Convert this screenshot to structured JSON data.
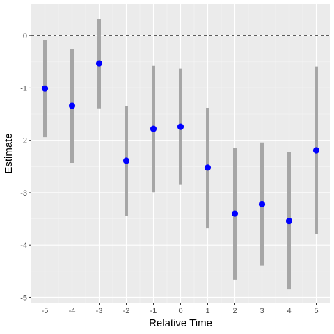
{
  "chart_data": {
    "type": "scatter",
    "title": "",
    "xlabel": "Relative Time",
    "ylabel": "Estimate",
    "x": [
      -5,
      -4,
      -3,
      -2,
      -1,
      0,
      1,
      2,
      3,
      4,
      5
    ],
    "estimate": [
      -1.01,
      -1.34,
      -0.53,
      -2.39,
      -1.78,
      -1.74,
      -2.52,
      -3.4,
      -3.22,
      -3.54,
      -2.19
    ],
    "ci_low": [
      -1.94,
      -2.43,
      -1.39,
      -3.45,
      -2.99,
      -2.85,
      -3.68,
      -4.66,
      -4.39,
      -4.85,
      -3.79
    ],
    "ci_high": [
      -0.08,
      -0.26,
      0.32,
      -1.34,
      -0.58,
      -0.63,
      -1.38,
      -2.15,
      -2.04,
      -2.22,
      -0.59
    ],
    "x_ticks": [
      "-5",
      "-4",
      "-3",
      "-2",
      "-1",
      "0",
      "1",
      "2",
      "3",
      "4",
      "5"
    ],
    "y_ticks": [
      "0",
      "-1",
      "-2",
      "-3",
      "-4",
      "-5"
    ],
    "y_tick_values": [
      0,
      -1,
      -2,
      -3,
      -4,
      -5
    ],
    "xlim": [
      -5.5,
      5.5
    ],
    "ylim": [
      -5.1,
      0.6
    ],
    "reference_line": 0,
    "grid": true,
    "colors": {
      "panel": "#ebebeb",
      "grid_major": "#ffffff",
      "grid_minor": "#f5f5f5",
      "point": "#0000ff",
      "interval": "#a6a6a6",
      "reference": "#000000"
    }
  }
}
